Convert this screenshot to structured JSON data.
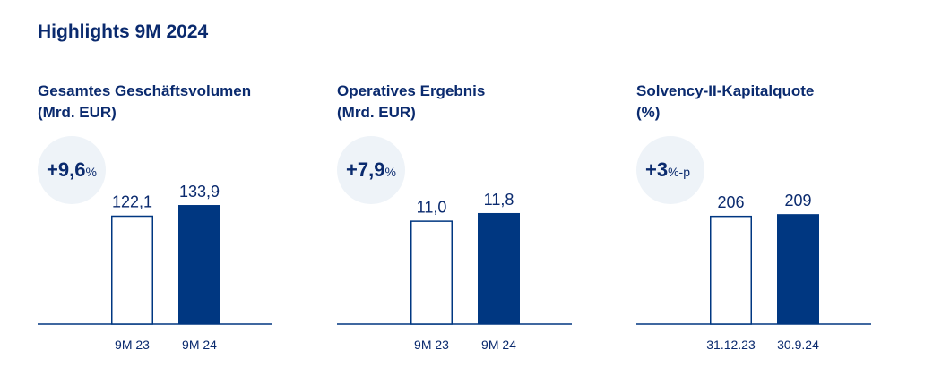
{
  "page_title": "Highlights 9M 2024",
  "colors": {
    "accent": "#003781",
    "text": "#0a2a6e",
    "bubble": "#eef3f8",
    "axis": "#003781"
  },
  "chart_data": [
    {
      "type": "bar",
      "title": "Gesamtes Geschäftsvolumen",
      "unit_label": "(Mrd. EUR)",
      "change": {
        "value": "+9,6",
        "unit": "%"
      },
      "categories": [
        "9M 23",
        "9M 24"
      ],
      "values": [
        122.1,
        133.9
      ],
      "value_labels": [
        "122,1",
        "133,9"
      ],
      "styles": [
        "outline",
        "filled"
      ],
      "ylim": [
        0,
        145
      ]
    },
    {
      "type": "bar",
      "title": "Operatives Ergebnis",
      "unit_label": "(Mrd. EUR)",
      "change": {
        "value": "+7,9",
        "unit": "%"
      },
      "categories": [
        "9M 23",
        "9M 24"
      ],
      "values": [
        11.0,
        11.8
      ],
      "value_labels": [
        "11,0",
        "11,8"
      ],
      "styles": [
        "outline",
        "filled"
      ],
      "ylim": [
        0,
        13.7
      ]
    },
    {
      "type": "bar",
      "title": "Solvency-II-Kapitalquote",
      "unit_label": "(%)",
      "change": {
        "value": "+3",
        "unit": "%-p"
      },
      "categories": [
        "31.12.23",
        "30.9.24"
      ],
      "values": [
        206,
        209
      ],
      "value_labels": [
        "206",
        "209"
      ],
      "styles": [
        "outline",
        "filled"
      ],
      "ylim": [
        0,
        245
      ]
    }
  ]
}
